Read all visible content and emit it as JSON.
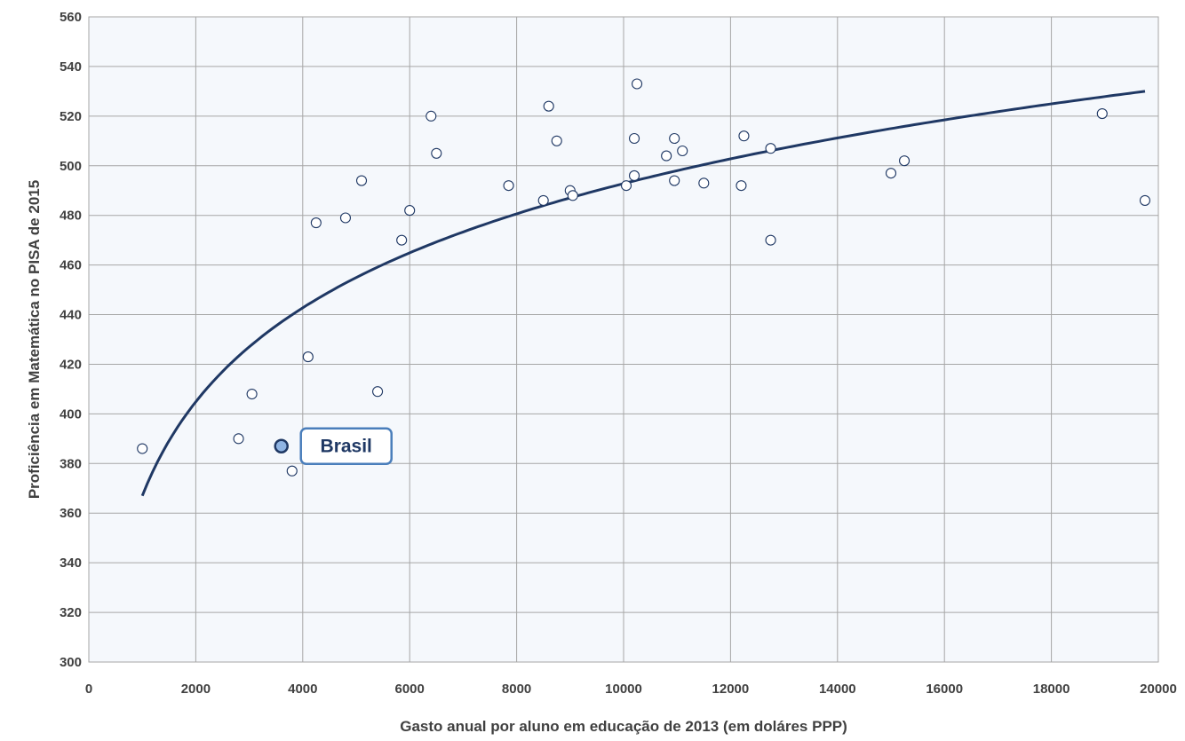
{
  "chart_data": {
    "type": "scatter",
    "xlabel": "Gasto anual por aluno em educação de 2013 (em doláres PPP)",
    "ylabel": "Proficiência em Matemática no PISA de 2015",
    "xlim": [
      0,
      20000
    ],
    "ylim": [
      300,
      560
    ],
    "xticks": [
      "0",
      "2000",
      "4000",
      "6000",
      "8000",
      "10000",
      "12000",
      "14000",
      "16000",
      "18000",
      "20000"
    ],
    "yticks": [
      "300",
      "320",
      "340",
      "360",
      "380",
      "400",
      "420",
      "440",
      "460",
      "480",
      "500",
      "520",
      "540",
      "560"
    ],
    "grid": true,
    "legend": "none",
    "points": [
      {
        "x": 1000,
        "y": 386
      },
      {
        "x": 2800,
        "y": 390
      },
      {
        "x": 3050,
        "y": 408
      },
      {
        "x": 3800,
        "y": 377
      },
      {
        "x": 4100,
        "y": 423
      },
      {
        "x": 4250,
        "y": 477
      },
      {
        "x": 4800,
        "y": 479
      },
      {
        "x": 5100,
        "y": 494
      },
      {
        "x": 5400,
        "y": 409
      },
      {
        "x": 5850,
        "y": 470
      },
      {
        "x": 6000,
        "y": 482
      },
      {
        "x": 6400,
        "y": 520
      },
      {
        "x": 6500,
        "y": 505
      },
      {
        "x": 7850,
        "y": 492
      },
      {
        "x": 8500,
        "y": 486
      },
      {
        "x": 8600,
        "y": 524
      },
      {
        "x": 8750,
        "y": 510
      },
      {
        "x": 9000,
        "y": 490
      },
      {
        "x": 9050,
        "y": 488
      },
      {
        "x": 10050,
        "y": 492
      },
      {
        "x": 10200,
        "y": 511
      },
      {
        "x": 10200,
        "y": 496
      },
      {
        "x": 10250,
        "y": 533
      },
      {
        "x": 10800,
        "y": 504
      },
      {
        "x": 10950,
        "y": 494
      },
      {
        "x": 10950,
        "y": 511
      },
      {
        "x": 11100,
        "y": 506
      },
      {
        "x": 11500,
        "y": 493
      },
      {
        "x": 12200,
        "y": 492
      },
      {
        "x": 12250,
        "y": 512
      },
      {
        "x": 12750,
        "y": 470
      },
      {
        "x": 12750,
        "y": 507
      },
      {
        "x": 15000,
        "y": 497
      },
      {
        "x": 15250,
        "y": 502
      },
      {
        "x": 18950,
        "y": 521
      },
      {
        "x": 19750,
        "y": 486
      }
    ],
    "highlight": {
      "label": "Brasil",
      "x": 3600,
      "y": 387
    },
    "trendline": {
      "type": "logarithmic",
      "x_range": [
        1000,
        19750
      ],
      "y_start": 367,
      "y_end": 530
    }
  }
}
